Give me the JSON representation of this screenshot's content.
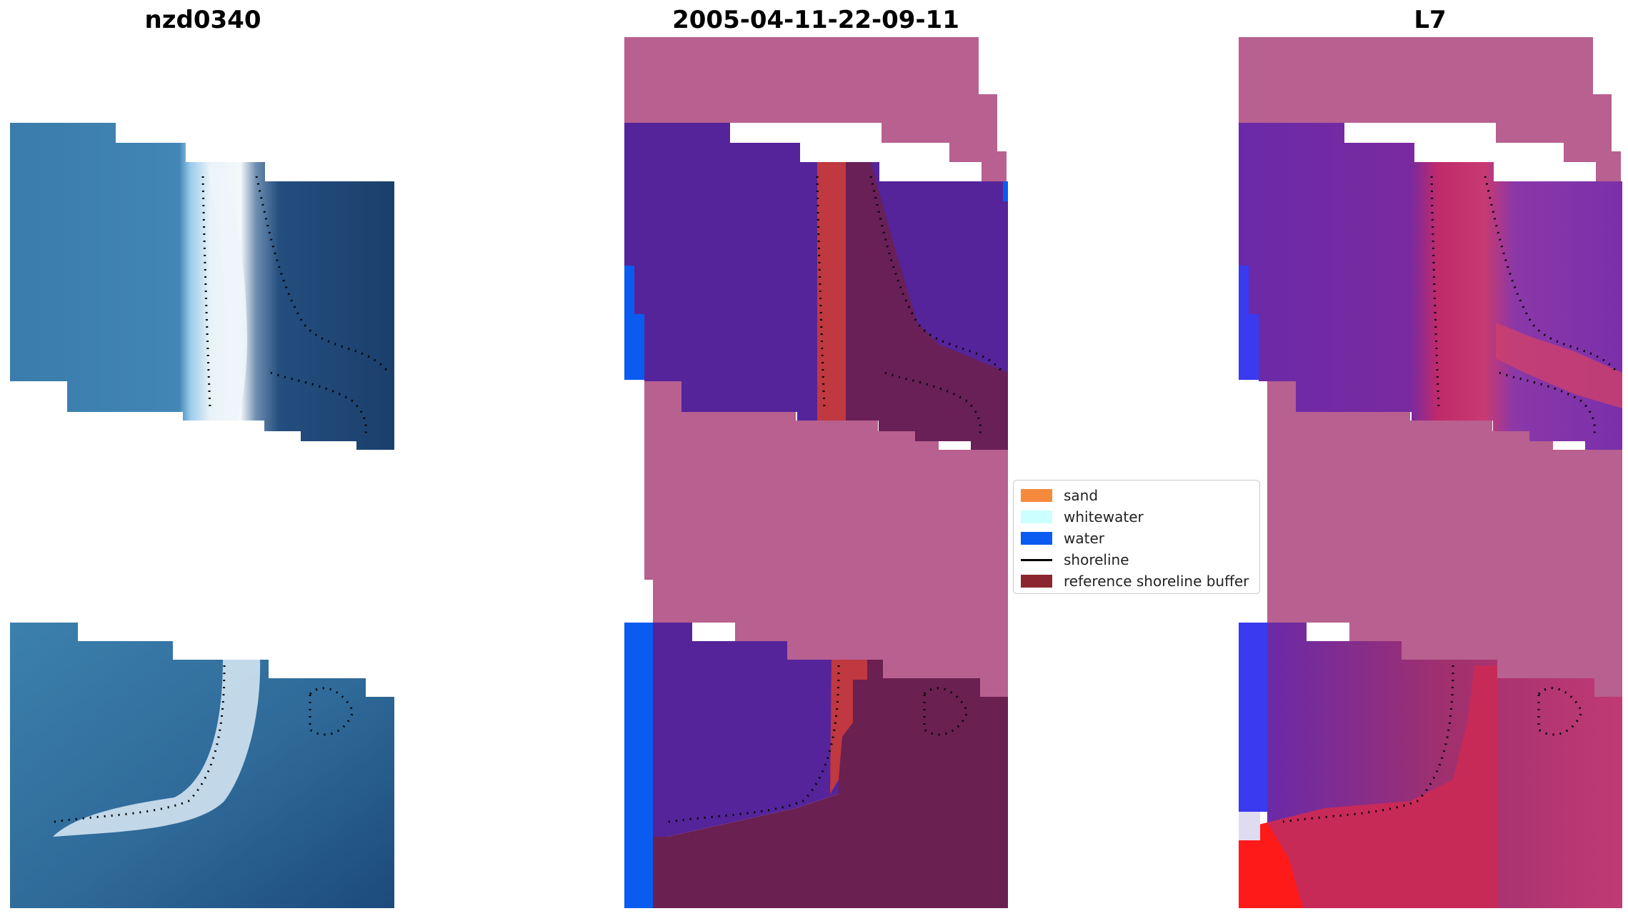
{
  "titles": {
    "left": "nzd0340",
    "middle": "2005-04-11-22-09-11",
    "right": "L7"
  },
  "legend": {
    "items": [
      {
        "label": "sand",
        "color": "#f58a3c",
        "kind": "patch"
      },
      {
        "label": "whitewater",
        "color": "#ccffff",
        "kind": "patch"
      },
      {
        "label": "water",
        "color": "#0a5cf0",
        "kind": "patch"
      },
      {
        "label": "shoreline",
        "color": "#000000",
        "kind": "line"
      },
      {
        "label": "reference shoreline buffer",
        "color": "#8a2630",
        "kind": "patch"
      }
    ]
  },
  "colors": {
    "rgb_water_shallow": "#3c7fae",
    "rgb_water_deep": "#1c4a7c",
    "rgb_whitewater": "#e6f0f8",
    "nodata_pink": "#b86090",
    "class_water_purple": "#55249a",
    "bright_water_blue": "#0a5cf0",
    "buffer_red": "#c03840",
    "buffer_dark": "#6a2050",
    "index_red": "#d02050",
    "index_bright_red": "#ff1a1a"
  }
}
